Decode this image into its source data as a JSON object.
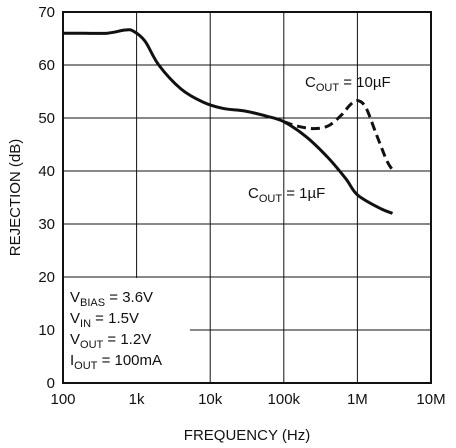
{
  "chart_data": {
    "type": "line",
    "title": "",
    "xlabel": "FREQUENCY (Hz)",
    "ylabel": "REJECTION (dB)",
    "x_scale": "log",
    "xlim": [
      100,
      10000000
    ],
    "ylim": [
      0,
      70
    ],
    "x_ticks": [
      100,
      1000,
      10000,
      100000,
      1000000,
      10000000
    ],
    "x_tick_labels": [
      "100",
      "1k",
      "10k",
      "100k",
      "1M",
      "10M"
    ],
    "y_ticks": [
      0,
      10,
      20,
      30,
      40,
      50,
      60,
      70
    ],
    "y_tick_labels": [
      "0",
      "10",
      "20",
      "30",
      "40",
      "50",
      "60",
      "70"
    ],
    "grid": true,
    "series": [
      {
        "name": "C_OUT = 1µF",
        "style": "solid",
        "x": [
          100,
          200,
          400,
          700,
          900,
          1300,
          2000,
          4000,
          8000,
          15000,
          30000,
          60000,
          100000,
          200000,
          400000,
          700000,
          1000000,
          2000000,
          3000000
        ],
        "y": [
          66,
          66,
          66,
          66.6,
          66.4,
          64.5,
          60,
          55.5,
          53,
          51.8,
          51.3,
          50.3,
          49.3,
          46.5,
          42.5,
          38.5,
          35.5,
          33,
          32
        ]
      },
      {
        "name": "C_OUT = 10µF",
        "style": "dashed",
        "x": [
          100000,
          150000,
          250000,
          400000,
          600000,
          800000,
          1000000,
          1300000,
          1800000,
          2500000,
          3000000
        ],
        "y": [
          49.3,
          48.5,
          48,
          48.5,
          50.5,
          52.5,
          53.3,
          52,
          47,
          42,
          40.2
        ]
      }
    ],
    "annotations": {
      "cout10": {
        "pre": "C",
        "sub": "OUT",
        "post": " = 10µF"
      },
      "cout1": {
        "pre": "C",
        "sub": "OUT",
        "post": " = 1µF"
      },
      "conditions": [
        {
          "pre": "V",
          "sub": "BIAS",
          "post": " = 3.6V"
        },
        {
          "pre": "V",
          "sub": "IN",
          "post": " = 1.5V"
        },
        {
          "pre": "V",
          "sub": "OUT",
          "post": " = 1.2V"
        },
        {
          "pre": "I",
          "sub": "OUT",
          "post": " = 100mA"
        }
      ]
    },
    "colors": {
      "line": "#111111",
      "grid": "#111111"
    }
  }
}
